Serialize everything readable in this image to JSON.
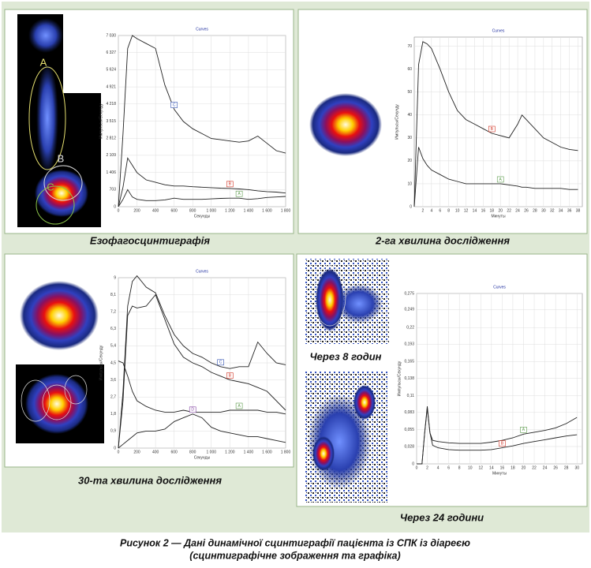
{
  "chart_data": [
    {
      "type": "line",
      "title": "Curves",
      "y_label": "Импульсы/Секунду",
      "x_label": "Секунды",
      "x": [
        0,
        50,
        100,
        150,
        200,
        300,
        400,
        500,
        600,
        700,
        800,
        900,
        1000,
        1100,
        1200,
        1300,
        1400,
        1500,
        1600,
        1700,
        1800
      ],
      "series": [
        {
          "name": "C",
          "color": "#222",
          "values": [
            0,
            3000,
            6500,
            7030,
            6900,
            6700,
            6500,
            5000,
            4000,
            3500,
            3200,
            3000,
            2800,
            2750,
            2700,
            2650,
            2700,
            2900,
            2600,
            2300,
            2200
          ]
        },
        {
          "name": "B",
          "color": "#222",
          "values": [
            0,
            800,
            2000,
            1700,
            1400,
            1100,
            1000,
            900,
            850,
            850,
            820,
            800,
            780,
            760,
            750,
            730,
            700,
            650,
            620,
            600,
            560
          ]
        },
        {
          "name": "A",
          "color": "#222",
          "values": [
            0,
            300,
            700,
            400,
            300,
            250,
            250,
            280,
            350,
            300,
            300,
            300,
            320,
            340,
            350,
            350,
            300,
            330,
            380,
            400,
            420
          ]
        }
      ],
      "xlim": [
        0,
        1800
      ],
      "xticks": [
        0,
        200,
        400,
        600,
        800,
        {
          "value": 1000,
          "label": "1 000"
        },
        {
          "value": 1200,
          "label": "1 200"
        },
        {
          "value": 1400,
          "label": "1 400"
        },
        {
          "value": 1600,
          "label": "1 600"
        },
        {
          "value": 1800,
          "label": "1 800"
        }
      ],
      "ylim": [
        0,
        7030
      ],
      "yticks": [
        0,
        703,
        {
          "value": 1406,
          "label": "1 406"
        },
        {
          "value": 2109,
          "label": "2 109"
        },
        {
          "value": 2812,
          "label": "2 812"
        },
        {
          "value": 3515,
          "label": "3 515"
        },
        {
          "value": 4218,
          "label": "4 218"
        },
        {
          "value": 4921,
          "label": "4 921"
        },
        {
          "value": 5624,
          "label": "5 624"
        },
        {
          "value": 6327,
          "label": "6 327"
        },
        {
          "value": 7030,
          "label": "7 030"
        }
      ],
      "grid": true
    },
    {
      "type": "line",
      "title": "Curves",
      "y_label": "Импульсы/Секунду",
      "x_label": "Минуты",
      "x": [
        0,
        1,
        2,
        3,
        4,
        6,
        8,
        10,
        12,
        14,
        16,
        18,
        20,
        22,
        24,
        25,
        26,
        28,
        30,
        32,
        34,
        36,
        38
      ],
      "series": [
        {
          "name": "B",
          "color": "#222",
          "values": [
            0,
            62,
            72,
            71,
            69,
            60,
            50,
            42,
            38,
            36,
            34,
            32,
            31,
            30,
            36,
            40,
            38,
            34,
            30,
            28,
            26,
            25,
            24.5
          ]
        },
        {
          "name": "A",
          "color": "#222",
          "values": [
            0,
            26,
            21,
            18,
            16,
            14,
            12,
            11,
            10,
            10,
            10,
            10,
            10,
            9.5,
            9,
            8.5,
            8.5,
            8,
            8,
            8,
            8,
            7.5,
            7.5
          ]
        }
      ],
      "xlim": [
        0,
        39
      ],
      "xticks": [
        2,
        4,
        6,
        8,
        10,
        12,
        14,
        16,
        18,
        20,
        22,
        24,
        26,
        28,
        30,
        32,
        34,
        36,
        38
      ],
      "ylim": [
        0,
        74
      ],
      "yticks": [
        0,
        10,
        20,
        30,
        40,
        50,
        60,
        70
      ],
      "grid": true
    },
    {
      "type": "line",
      "title": "Curves",
      "y_label": "Импульсы/Секунду",
      "x_label": "Секунды",
      "x": [
        0,
        50,
        100,
        150,
        200,
        300,
        400,
        500,
        600,
        700,
        800,
        900,
        1000,
        1100,
        1200,
        1300,
        1400,
        1500,
        1600,
        1700,
        1800
      ],
      "series": [
        {
          "name": "C",
          "color": "#222",
          "values": [
            0,
            3,
            7.5,
            8.8,
            9.1,
            8.5,
            8.2,
            7,
            6,
            5.4,
            5,
            4.8,
            4.5,
            4.3,
            4.2,
            4.3,
            4.3,
            5.6,
            5,
            4.5,
            4.4
          ]
        },
        {
          "name": "B",
          "color": "#222",
          "values": [
            0,
            2.5,
            7,
            7.5,
            7.4,
            7.5,
            8.1,
            6.8,
            5.5,
            4.8,
            4.5,
            4.3,
            4,
            3.8,
            3.6,
            3.5,
            3.4,
            3.2,
            3,
            2.5,
            2
          ]
        },
        {
          "name": "A",
          "color": "#222",
          "values": [
            4.6,
            4.5,
            3.8,
            3,
            2.5,
            2.2,
            2,
            1.9,
            1.9,
            2,
            1.9,
            1.9,
            1.9,
            1.9,
            2,
            2,
            2,
            2,
            1.9,
            1.9,
            1.8
          ]
        },
        {
          "name": "D",
          "color": "#222",
          "values": [
            0,
            0.2,
            0.4,
            0.6,
            0.8,
            0.9,
            0.9,
            1,
            1.4,
            1.6,
            1.8,
            1.6,
            1.1,
            0.9,
            0.8,
            0.7,
            0.6,
            0.6,
            0.5,
            0.4,
            0.3
          ]
        }
      ],
      "xlim": [
        0,
        1800
      ],
      "xticks": [
        0,
        200,
        400,
        600,
        800,
        {
          "value": 1000,
          "label": "1 000"
        },
        {
          "value": 1200,
          "label": "1 200"
        },
        {
          "value": 1400,
          "label": "1 400"
        },
        {
          "value": 1600,
          "label": "1 600"
        },
        {
          "value": 1800,
          "label": "1 800"
        }
      ],
      "ylim": [
        0,
        9
      ],
      "yticks": [
        0,
        {
          "value": 0.9,
          "label": "0,9"
        },
        {
          "value": 1.8,
          "label": "1,8"
        },
        {
          "value": 2.7,
          "label": "2,7"
        },
        {
          "value": 3.6,
          "label": "3,6"
        },
        {
          "value": 4.5,
          "label": "4,5"
        },
        {
          "value": 5.4,
          "label": "5,4"
        },
        {
          "value": 6.3,
          "label": "6,3"
        },
        {
          "value": 7.2,
          "label": "7,2"
        },
        {
          "value": 8.1,
          "label": "8,1"
        },
        9
      ],
      "grid": true
    },
    {
      "type": "line",
      "title": "Curves",
      "y_label": "Импульсы/Секунду",
      "x_label": "Минуты",
      "x": [
        0,
        1,
        1.5,
        2,
        2.5,
        3,
        4,
        6,
        8,
        10,
        12,
        14,
        16,
        18,
        20,
        22,
        24,
        26,
        28,
        30
      ],
      "series": [
        {
          "name": "A",
          "color": "#222",
          "values": [
            0,
            0,
            0.05,
            0.093,
            0.05,
            0.038,
            0.036,
            0.034,
            0.033,
            0.033,
            0.033,
            0.035,
            0.038,
            0.042,
            0.048,
            0.051,
            0.054,
            0.058,
            0.065,
            0.075
          ]
        },
        {
          "name": "B",
          "color": "#222",
          "values": [
            0,
            0,
            0.05,
            0.09,
            0.05,
            0.03,
            0.026,
            0.023,
            0.022,
            0.022,
            0.022,
            0.023,
            0.026,
            0.029,
            0.033,
            0.036,
            0.039,
            0.042,
            0.045,
            0.047
          ]
        }
      ],
      "xlim": [
        0,
        31
      ],
      "xticks": [
        0,
        2,
        4,
        6,
        8,
        10,
        12,
        14,
        16,
        18,
        20,
        22,
        24,
        26,
        28,
        30
      ],
      "ylim": [
        0,
        0.275
      ],
      "yticks": [
        0,
        {
          "value": 0.028,
          "label": "0,028"
        },
        {
          "value": 0.055,
          "label": "0,055"
        },
        {
          "value": 0.083,
          "label": "0,083"
        },
        {
          "value": 0.11,
          "label": "0,11"
        },
        {
          "value": 0.138,
          "label": "0,138"
        },
        {
          "value": 0.165,
          "label": "0,165"
        },
        {
          "value": 0.193,
          "label": "0,193"
        },
        {
          "value": 0.22,
          "label": "0,22"
        },
        {
          "value": 0.249,
          "label": "0,249"
        },
        {
          "value": 0.275,
          "label": "0,275"
        }
      ],
      "grid": true
    }
  ],
  "panels": [
    {
      "caption": "Езофагосцинтиграфія",
      "roi_labels": [
        "A",
        "B",
        "C"
      ]
    },
    {
      "caption": "2-га хвилина дослідження"
    },
    {
      "caption": "30-та хвилина дослідження"
    },
    {
      "captions": [
        "Через 8 годин",
        "Через 24 години"
      ]
    }
  ],
  "figure_caption": [
    "Рисунок 2 — Дані динамічної сцинтиграфії пацієнта із СПК із діареєю",
    "(сцинтиграфічне зображення та графіка)"
  ]
}
